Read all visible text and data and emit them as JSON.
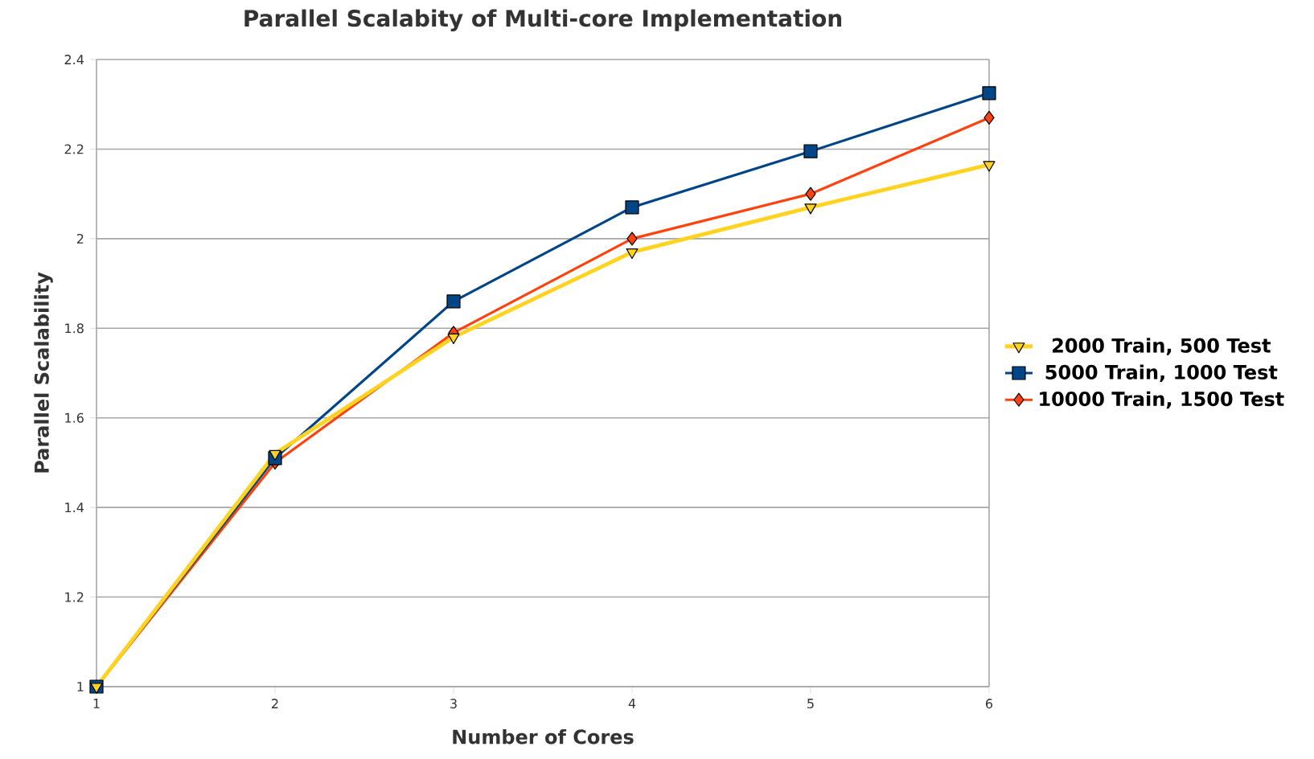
{
  "chart_data": {
    "type": "line",
    "title": "Parallel Scalabity of Multi-core Implementation",
    "xlabel": "Number of Cores",
    "ylabel": "Parallel Scalability",
    "x": [
      1,
      2,
      3,
      4,
      5,
      6
    ],
    "series": [
      {
        "name": "2000 Train, 500 Test",
        "color": "#ffd320",
        "marker": "triangle",
        "values": [
          1,
          1.52,
          1.78,
          1.97,
          2.07,
          2.165
        ]
      },
      {
        "name": "5000 Train, 1000 Test",
        "color": "#004586",
        "marker": "square",
        "values": [
          1,
          1.51,
          1.86,
          2.07,
          2.195,
          2.325
        ]
      },
      {
        "name": "10000 Train, 1500 Test",
        "color": "#ff420e",
        "marker": "diamond",
        "values": [
          1,
          1.5,
          1.79,
          2.0,
          2.1,
          2.27
        ]
      }
    ],
    "xlim": [
      1,
      6
    ],
    "xticks": [
      1,
      2,
      3,
      4,
      5,
      6
    ],
    "ylim": [
      1,
      2.4
    ],
    "yticks": [
      1,
      1.2,
      1.4,
      1.6,
      1.8,
      2,
      2.2,
      2.4
    ],
    "grid": "y",
    "legend": "right",
    "line_style": "solid"
  }
}
